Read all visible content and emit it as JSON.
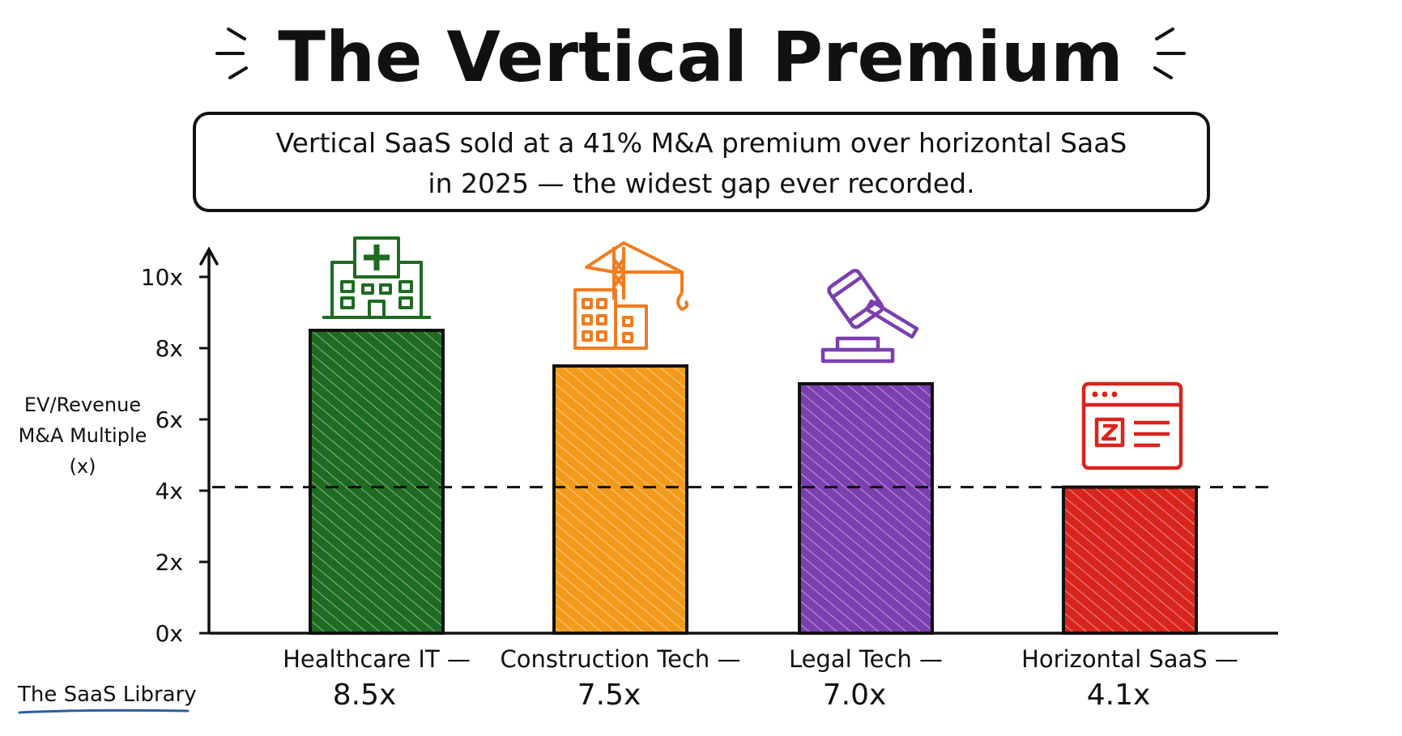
{
  "header": {
    "title": "The Vertical Premium",
    "subtitle_line1": "Vertical SaaS sold at a 41% M&A premium over horizontal SaaS",
    "subtitle_line2": "in 2025 — the widest gap ever recorded."
  },
  "footer": {
    "brand": "The SaaS Library"
  },
  "chart_data": {
    "type": "bar",
    "ylabel": [
      "EV/Revenue",
      "M&A Multiple",
      "(x)"
    ],
    "ylim": [
      0,
      10
    ],
    "yticks": [
      "0x",
      "2x",
      "4x",
      "6x",
      "8x",
      "10x"
    ],
    "categories": [
      "Healthcare IT —",
      "Construction Tech —",
      "Legal Tech —",
      "Horizontal SaaS —"
    ],
    "value_labels": [
      "8.5x",
      "7.5x",
      "7.0x",
      "4.1x"
    ],
    "values": [
      8.5,
      7.5,
      7.0,
      4.1
    ],
    "colors": [
      "#1e6b22",
      "#f29a1c",
      "#7b3fb0",
      "#d8251c"
    ],
    "icons": [
      "hospital-icon",
      "construction-crane-icon",
      "gavel-icon",
      "saas-browser-window-icon"
    ],
    "reference_line": {
      "value": 4.1,
      "style": "dashed"
    },
    "grid": false,
    "legend": "none"
  }
}
